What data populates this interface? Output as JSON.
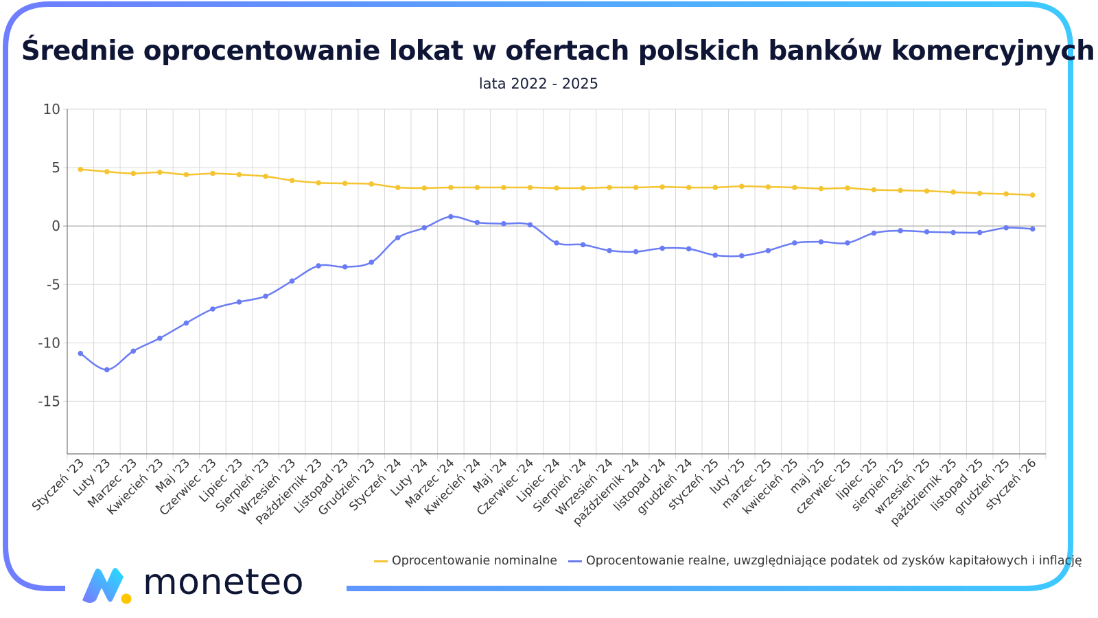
{
  "header": {
    "title": "Średnie oprocentowanie lokat w ofertach polskich banków komercyjnych",
    "subtitle": "lata 2022 - 2025"
  },
  "logo": {
    "text": "moneteo"
  },
  "colors": {
    "nominal": "#f5c431",
    "real": "#6a7cf4",
    "frame_left": "#6f7dff",
    "frame_right": "#3ec9ff",
    "text": "#0f1535"
  },
  "chart_data": {
    "type": "line",
    "title": "Średnie oprocentowanie lokat w ofertach polskich banków komercyjnych",
    "subtitle": "lata 2022 - 2025",
    "xlabel": "",
    "ylabel": "",
    "ylim": [
      -19.5,
      10
    ],
    "yticks": [
      10,
      5,
      0,
      -5,
      -10,
      -15
    ],
    "grid": true,
    "legend": "bottom-right",
    "categories": [
      "Styczeń '23",
      "Luty '23",
      "Marzec '23",
      "Kwiecień '23",
      "Maj '23",
      "Czerwiec '23",
      "Lipiec '23",
      "Sierpień '23",
      "Wrzesień '23",
      "Październik '23",
      "Listopad '23",
      "Grudzień '23",
      "Styczeń '24",
      "Luty '24",
      "Marzec '24",
      "Kwiecień '24",
      "Maj '24",
      "Czerwiec '24",
      "Lipiec '24",
      "Sierpień '24",
      "Wrzesień '24",
      "październik '24",
      "listopad '24",
      "grudzień '24",
      "styczeń '25",
      "luty '25",
      "marzec '25",
      "kwiecień '25",
      "maj '25",
      "czerwiec '25",
      "lipiec '25",
      "sierpień '25",
      "wrzesień '25",
      "październik '25",
      "listopad '25",
      "grudzień '25",
      "styczeń '26"
    ],
    "series": [
      {
        "name": "Oprocentowanie nominalne",
        "color": "#f5c431",
        "values": [
          4.85,
          4.65,
          4.5,
          4.6,
          4.4,
          4.5,
          4.4,
          4.25,
          3.9,
          3.7,
          3.65,
          3.6,
          3.3,
          3.25,
          3.3,
          3.3,
          3.3,
          3.3,
          3.25,
          3.25,
          3.3,
          3.3,
          3.35,
          3.3,
          3.3,
          3.4,
          3.35,
          3.3,
          3.2,
          3.25,
          3.1,
          3.05,
          3.0,
          2.9,
          2.8,
          2.75,
          2.65
        ]
      },
      {
        "name": "Oprocentowanie realne, uwzględniające podatek od zysków kapitałowych i inflację",
        "color": "#6a7cf4",
        "values": [
          -10.9,
          -12.3,
          -10.7,
          -9.6,
          -8.3,
          -7.1,
          -6.5,
          -6.0,
          -4.7,
          -3.4,
          -3.5,
          -3.1,
          -1.0,
          -0.15,
          0.8,
          0.3,
          0.2,
          0.1,
          -1.45,
          -1.6,
          -2.1,
          -2.2,
          -1.9,
          -1.95,
          -2.5,
          -2.55,
          -2.1,
          -1.45,
          -1.35,
          -1.45,
          -0.6,
          -0.4,
          -0.5,
          -0.55,
          -0.55,
          -0.15,
          -0.25
        ]
      }
    ]
  }
}
